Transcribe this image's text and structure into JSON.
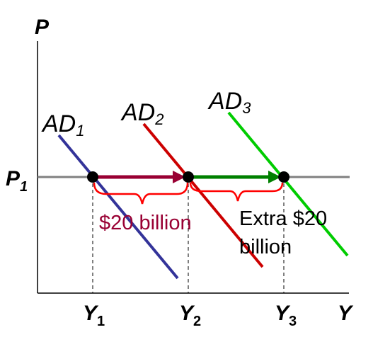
{
  "chart_data": {
    "type": "line",
    "title": "",
    "axes": {
      "y_label": "P",
      "x_label": "Y",
      "price_level": {
        "main": "P",
        "sub": "1"
      }
    },
    "x_ticks": [
      {
        "main": "Y",
        "sub": "1"
      },
      {
        "main": "Y",
        "sub": "2"
      },
      {
        "main": "Y",
        "sub": "3"
      }
    ],
    "series": [
      {
        "name_main": "AD",
        "name_sub": "1",
        "color": "#333399"
      },
      {
        "name_main": "AD",
        "name_sub": "2",
        "color": "#cc0000"
      },
      {
        "name_main": "AD",
        "name_sub": "3",
        "color": "#00cc00"
      }
    ],
    "shifts": [
      {
        "from": "Y1",
        "to": "Y2",
        "color": "#990033"
      },
      {
        "from": "Y2",
        "to": "Y3",
        "color": "#008000"
      }
    ],
    "annotations": {
      "first_shift": "$20 billion",
      "second_shift_line1": "Extra $20",
      "second_shift_line2": "billion"
    },
    "colors": {
      "axis": "#000000",
      "price_line": "#808080",
      "brace": "#ff0000",
      "first_annotation": "#990033",
      "second_annotation": "#000000"
    }
  }
}
